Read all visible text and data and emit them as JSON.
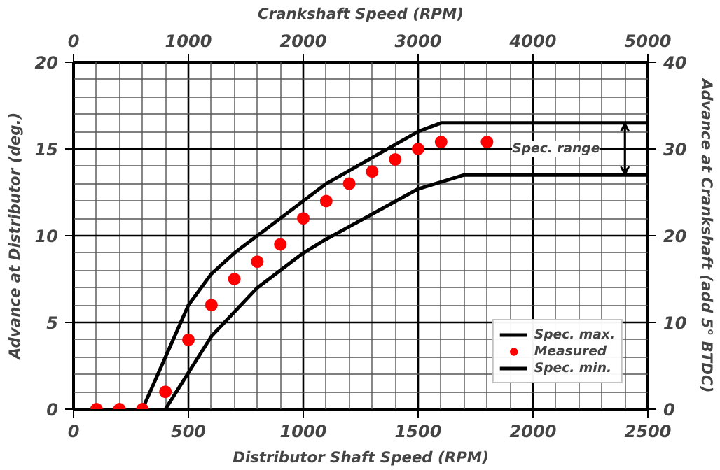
{
  "chart_data": {
    "type": "line",
    "xlabel": "Distributor Shaft Speed (RPM)",
    "ylabel": "Advance at Distributor (deg.)",
    "y2label": "Advance at Crankshaft (add 5° BTDC)",
    "x2label": "Crankshaft Speed (RPM)",
    "xlim": [
      0,
      2500
    ],
    "xticks": [
      0,
      500,
      1000,
      1500,
      2000,
      2500
    ],
    "ylim": [
      0,
      20
    ],
    "yticks": [
      0,
      5,
      10,
      15,
      20
    ],
    "y2lim": [
      0,
      40
    ],
    "y2ticks": [
      0,
      10,
      20,
      30,
      40
    ],
    "x2lim": [
      0,
      5000
    ],
    "x2ticks": [
      0,
      1000,
      2000,
      3000,
      4000,
      5000
    ],
    "grid": true,
    "legend": "bottom right",
    "series": [
      {
        "name": "Spec. max.",
        "color": "#000000",
        "x": [
          300,
          500,
          600,
          700,
          800,
          1100,
          1500,
          1600,
          2500
        ],
        "values": [
          0,
          6,
          7.8,
          9,
          10,
          13,
          16,
          16.5,
          16.5
        ]
      },
      {
        "name": "Measured",
        "type": "scatter",
        "marker": "circle",
        "color": "#ff0000",
        "x": [
          100,
          200,
          300,
          400,
          500,
          600,
          700,
          800,
          900,
          1000,
          1100,
          1200,
          1300,
          1400,
          1500,
          1600,
          1800
        ],
        "values": [
          0,
          0,
          0,
          1,
          4,
          6,
          7.5,
          8.5,
          9.5,
          11,
          12,
          13,
          13.7,
          14.4,
          15,
          15.4,
          15.4
        ]
      },
      {
        "name": "Spec. min.",
        "color": "#000000",
        "x": [
          400,
          600,
          800,
          1000,
          1100,
          1500,
          1700,
          2500
        ],
        "values": [
          0,
          4.2,
          7,
          9,
          9.8,
          12.7,
          13.5,
          13.5
        ]
      }
    ],
    "annotations": [
      "Spec. range"
    ]
  }
}
